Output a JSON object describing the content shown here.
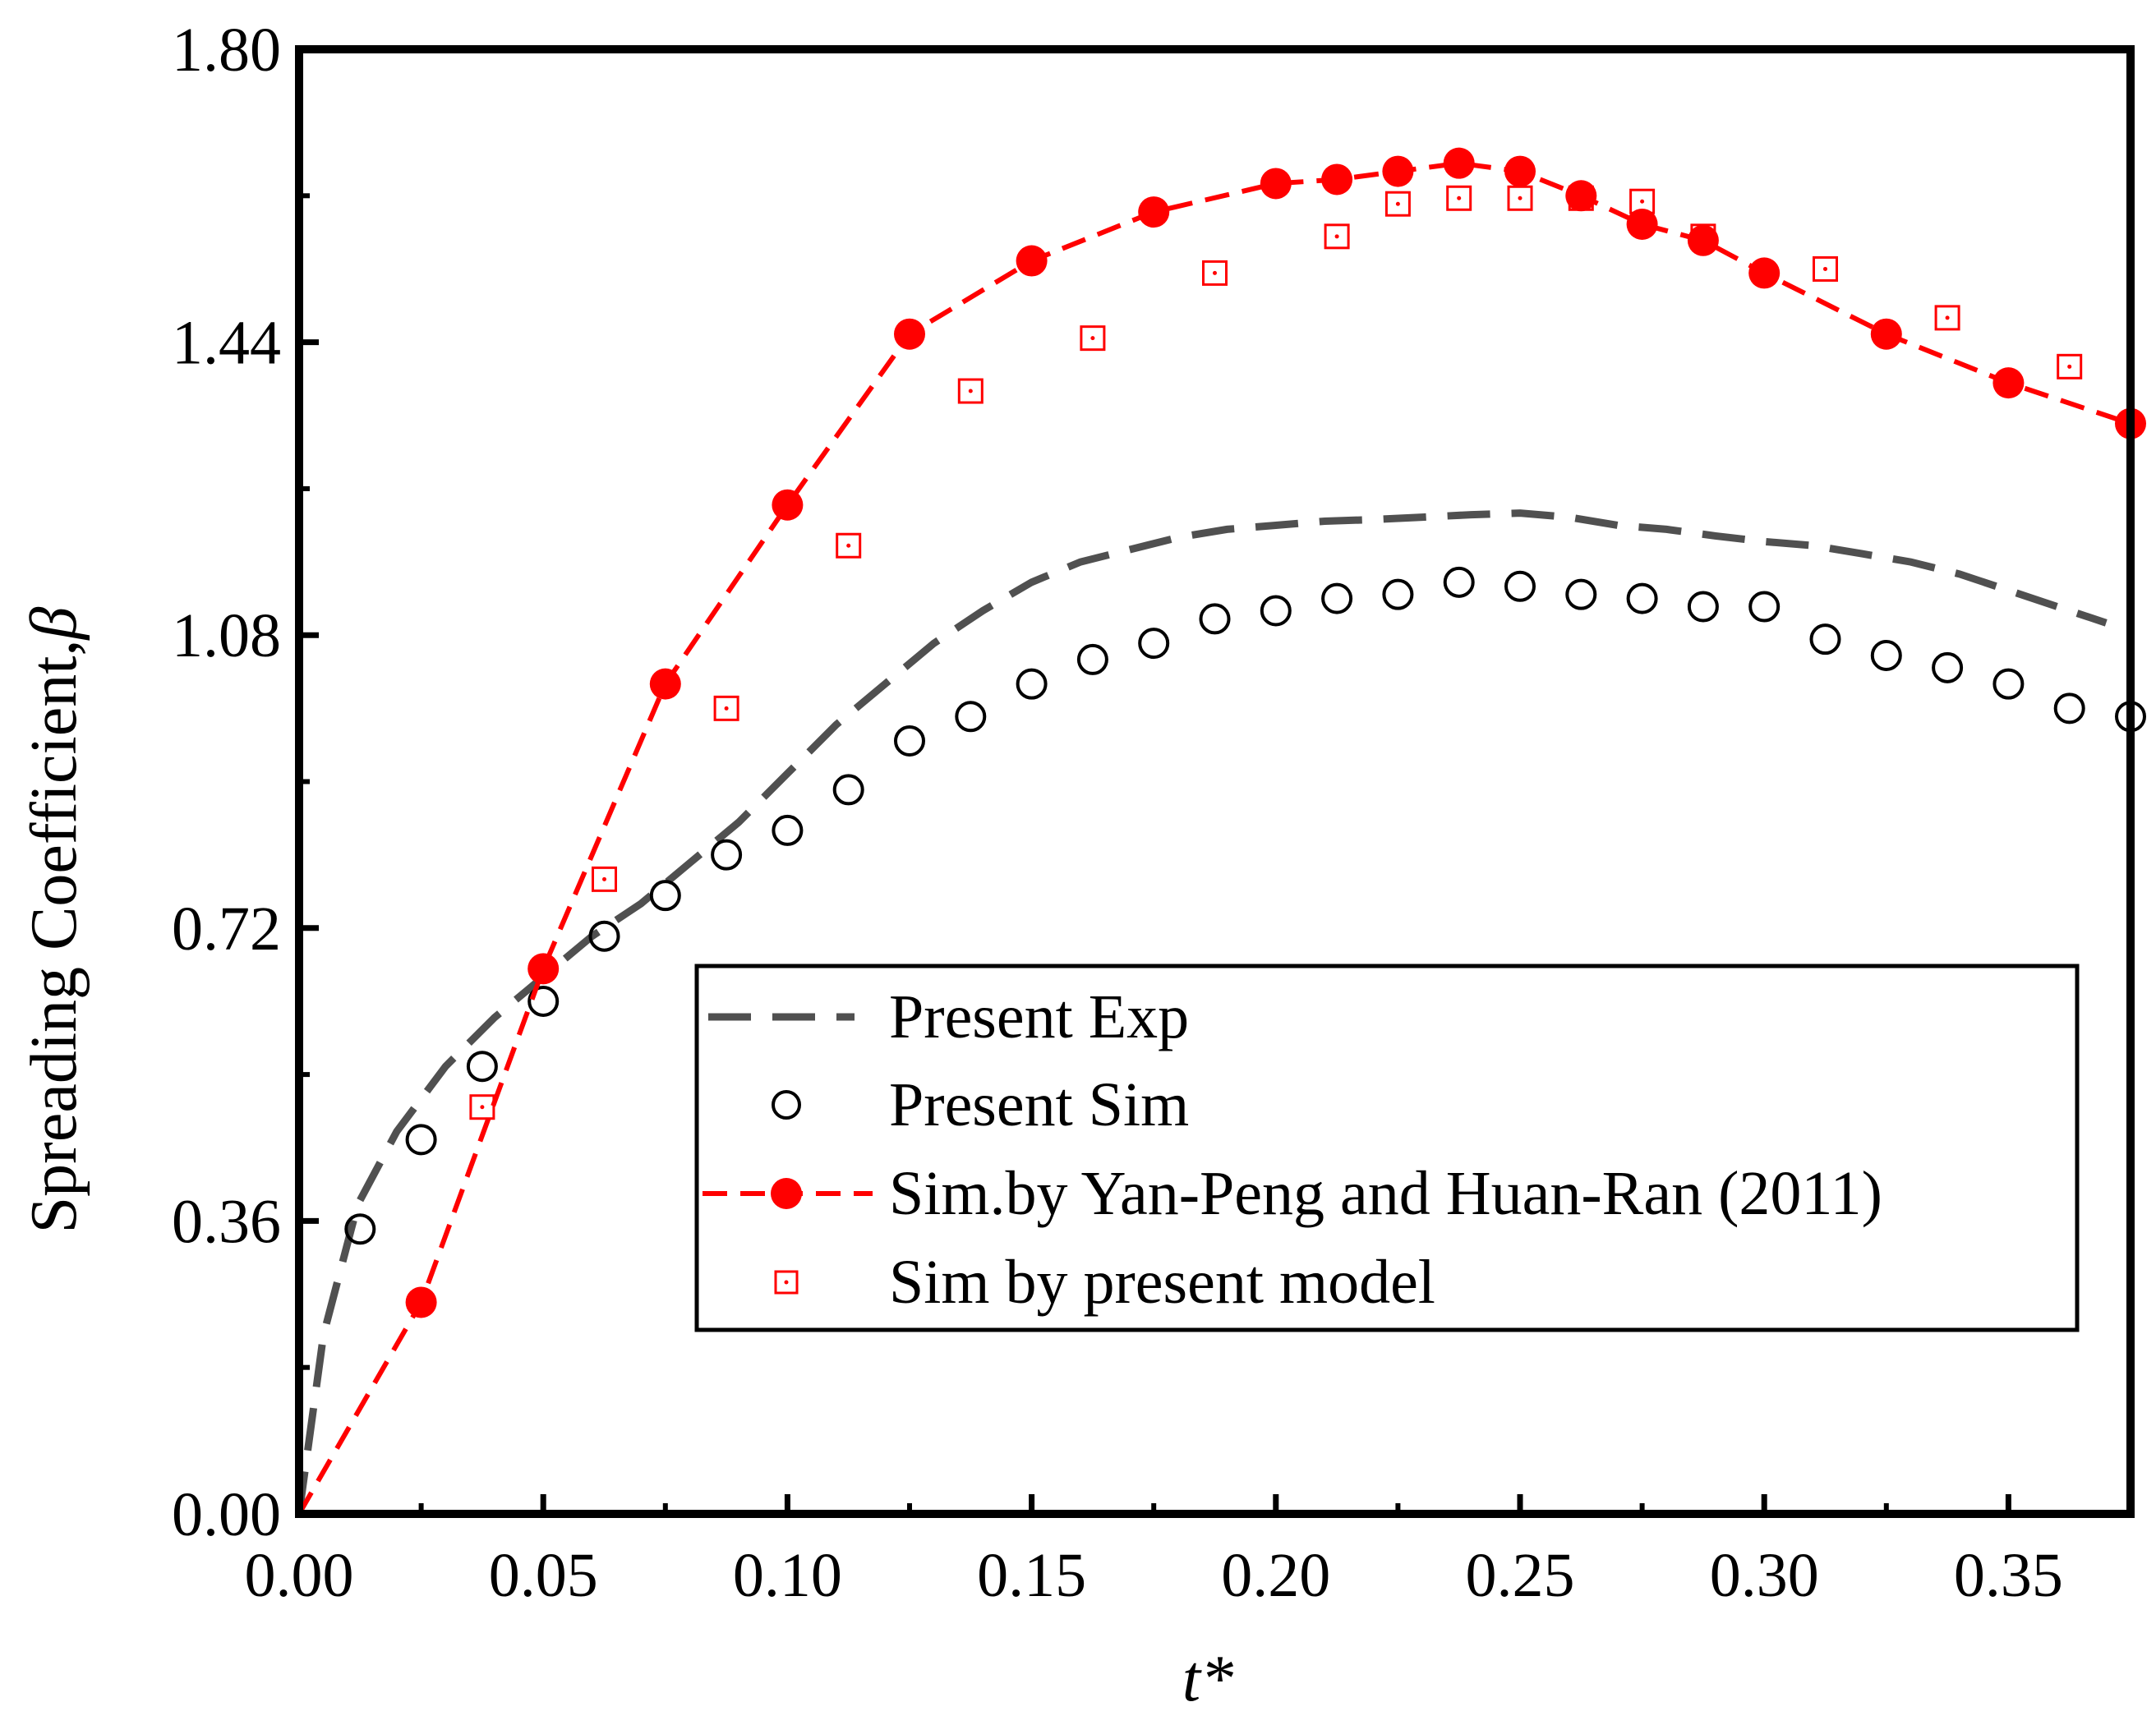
{
  "chart_data": {
    "type": "line",
    "title": "",
    "xlabel": "t*",
    "ylabel": "Spreading Coefficient,",
    "ylabel_symbol": "β",
    "xlim": [
      0.0,
      0.375
    ],
    "ylim": [
      0.0,
      1.8
    ],
    "xticks": [
      "0.00",
      "0.05",
      "0.10",
      "0.15",
      "0.20",
      "0.25",
      "0.30",
      "0.35"
    ],
    "xtick_values": [
      0.0,
      0.05,
      0.1,
      0.15,
      0.2,
      0.25,
      0.3,
      0.35
    ],
    "yticks": [
      "0.00",
      "0.36",
      "0.72",
      "1.08",
      "1.44",
      "1.80"
    ],
    "ytick_values": [
      0.0,
      0.36,
      0.72,
      1.08,
      1.44,
      1.8
    ],
    "grid": false,
    "legend_position": "bottom-right",
    "series": [
      {
        "name": "Present Exp",
        "style": "dashed-line",
        "color": "#505050",
        "x": [
          0.0,
          0.005,
          0.012,
          0.02,
          0.03,
          0.04,
          0.05,
          0.06,
          0.07,
          0.08,
          0.09,
          0.1,
          0.11,
          0.12,
          0.13,
          0.14,
          0.15,
          0.16,
          0.17,
          0.18,
          0.19,
          0.2,
          0.21,
          0.22,
          0.23,
          0.24,
          0.25,
          0.26,
          0.27,
          0.28,
          0.29,
          0.3,
          0.31,
          0.32,
          0.33,
          0.34,
          0.35,
          0.36,
          0.37
        ],
        "y": [
          0.0,
          0.22,
          0.38,
          0.47,
          0.55,
          0.61,
          0.66,
          0.71,
          0.75,
          0.8,
          0.85,
          0.91,
          0.97,
          1.02,
          1.07,
          1.11,
          1.145,
          1.17,
          1.185,
          1.2,
          1.21,
          1.215,
          1.22,
          1.222,
          1.225,
          1.228,
          1.23,
          1.225,
          1.215,
          1.21,
          1.202,
          1.195,
          1.19,
          1.18,
          1.17,
          1.155,
          1.135,
          1.115,
          1.095
        ]
      },
      {
        "name": "Present Sim",
        "style": "open-circle",
        "color": "#000000",
        "x": [
          0.0125,
          0.025,
          0.0375,
          0.05,
          0.0625,
          0.075,
          0.0875,
          0.1,
          0.1125,
          0.125,
          0.1375,
          0.15,
          0.1625,
          0.175,
          0.1875,
          0.2,
          0.2125,
          0.225,
          0.2375,
          0.25,
          0.2625,
          0.275,
          0.2875,
          0.3,
          0.3125,
          0.325,
          0.3375,
          0.35,
          0.3625,
          0.375
        ],
        "y": [
          0.35,
          0.46,
          0.55,
          0.63,
          0.71,
          0.76,
          0.81,
          0.84,
          0.89,
          0.95,
          0.98,
          1.02,
          1.05,
          1.07,
          1.1,
          1.11,
          1.125,
          1.13,
          1.145,
          1.14,
          1.13,
          1.125,
          1.115,
          1.115,
          1.075,
          1.055,
          1.04,
          1.02,
          0.99,
          0.98
        ]
      },
      {
        "name": "Sim.by Yan-Peng and Huan-Ran (2011)",
        "style": "dashed-line-filled-circle",
        "color": "#ff0000",
        "x": [
          0.0,
          0.025,
          0.05,
          0.075,
          0.1,
          0.125,
          0.15,
          0.175,
          0.2,
          0.2125,
          0.225,
          0.2375,
          0.25,
          0.2625,
          0.275,
          0.2875,
          0.3,
          0.325,
          0.35,
          0.375
        ],
        "y": [
          0.0,
          0.26,
          0.67,
          1.02,
          1.24,
          1.45,
          1.54,
          1.6,
          1.635,
          1.64,
          1.65,
          1.66,
          1.65,
          1.62,
          1.585,
          1.565,
          1.525,
          1.45,
          1.39,
          1.34
        ]
      },
      {
        "name": "Sim by present model",
        "style": "open-square",
        "color": "#ff0000",
        "x": [
          0.0375,
          0.0625,
          0.0875,
          0.1125,
          0.1375,
          0.1625,
          0.1875,
          0.2125,
          0.225,
          0.2375,
          0.25,
          0.2625,
          0.275,
          0.2875,
          0.3125,
          0.3375,
          0.3625
        ],
        "y": [
          0.5,
          0.78,
          0.99,
          1.19,
          1.38,
          1.445,
          1.525,
          1.57,
          1.61,
          1.617,
          1.617,
          1.617,
          1.613,
          1.57,
          1.53,
          1.47,
          1.41
        ]
      }
    ]
  }
}
